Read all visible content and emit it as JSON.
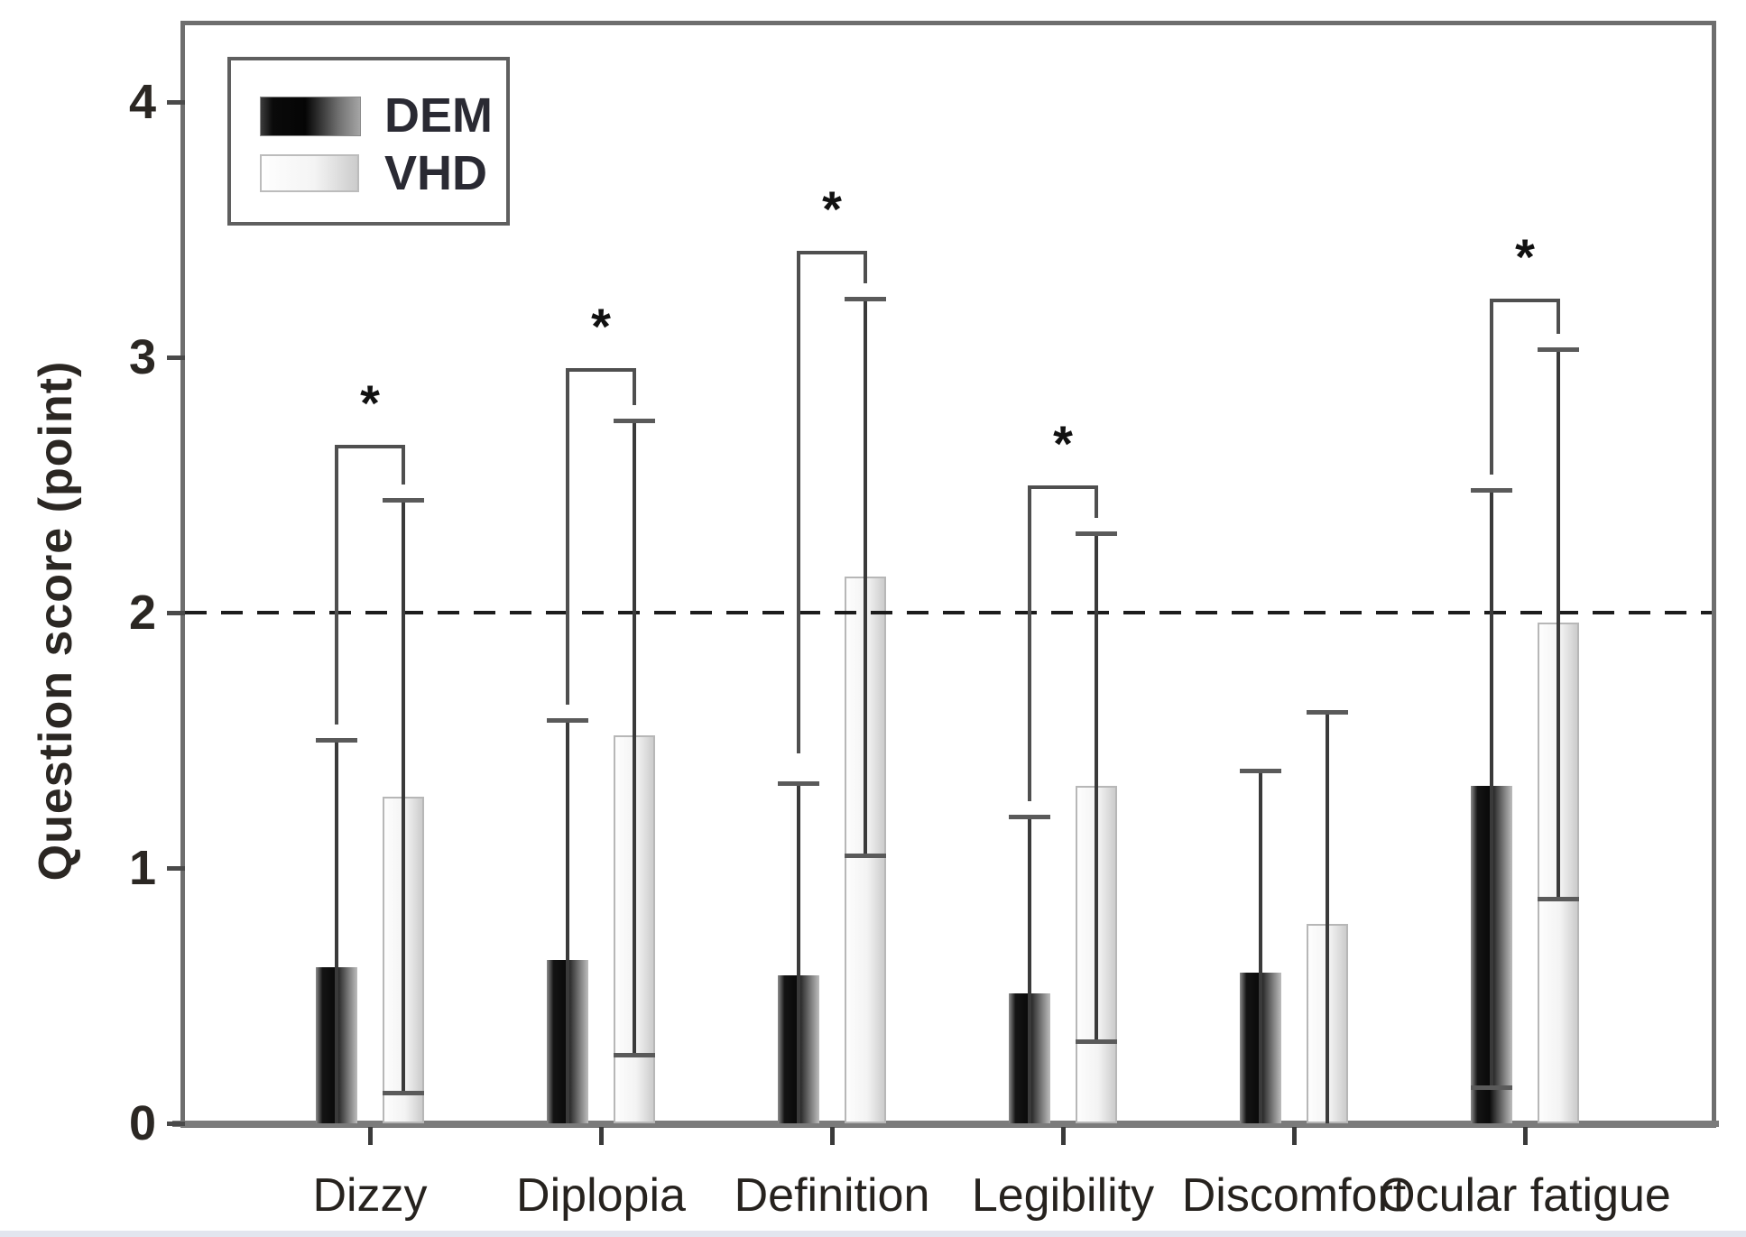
{
  "chart_data": {
    "type": "bar",
    "title": "",
    "xlabel": "",
    "ylabel": "Question score (point)",
    "categories": [
      "Dizzy",
      "Diplopia",
      "Definition",
      "Legibility",
      "Discomfort",
      "Ocular fatigue"
    ],
    "series": [
      {
        "name": "DEM",
        "values": [
          0.61,
          0.64,
          0.58,
          0.51,
          0.59,
          1.32
        ],
        "error_top": [
          1.5,
          1.58,
          1.33,
          1.2,
          1.38,
          2.48
        ],
        "error_bottom": [
          null,
          null,
          null,
          null,
          null,
          0.14
        ]
      },
      {
        "name": "VHD",
        "values": [
          1.28,
          1.52,
          2.14,
          1.32,
          0.78,
          1.96
        ],
        "error_top": [
          2.44,
          2.75,
          3.23,
          2.31,
          1.61,
          3.03
        ],
        "error_bottom": [
          0.12,
          0.27,
          1.05,
          0.32,
          null,
          0.88
        ]
      }
    ],
    "significance": {
      "marker": "*",
      "levels": [
        2.65,
        2.95,
        3.41,
        2.49,
        null,
        3.22
      ],
      "left_arm_down_to": [
        1.56,
        1.64,
        1.45,
        1.26,
        null,
        2.54
      ],
      "right_arm_down_to": [
        2.5,
        2.81,
        3.29,
        2.37,
        null,
        3.09
      ]
    },
    "yticks": [
      "0",
      "1",
      "2",
      "3",
      "4"
    ],
    "ytick_values": [
      0,
      1,
      2,
      3,
      4
    ],
    "ylim": [
      0,
      4.3
    ],
    "reference_line_y": 2,
    "grid": false,
    "legend_position": "top-left",
    "legend": [
      "DEM",
      "VHD"
    ],
    "colors": {
      "axis": "#6e6e6e",
      "axis_bottom": "#7b7b7b",
      "text": "#26221e",
      "error_bar": "#3a3a3a",
      "error_cap": "#5a5a5a",
      "dashed_line": "#1c1c1c",
      "bracket": "#4f4f4f",
      "dem_dark": "#0a0a0a",
      "dem_light": "#a5a5a5",
      "vhd_white": "#fdfdfd",
      "vhd_gray": "#cccccc"
    }
  }
}
